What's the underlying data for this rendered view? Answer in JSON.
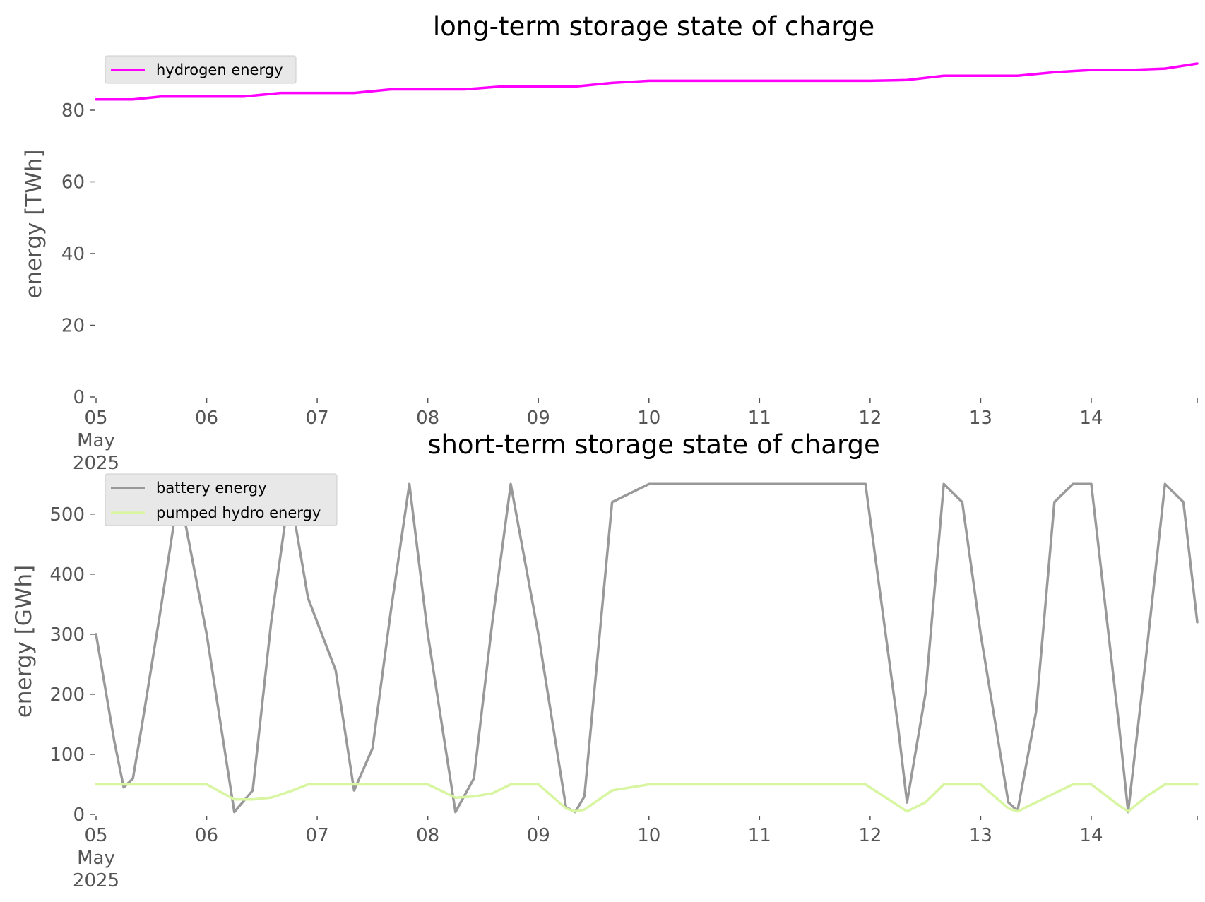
{
  "chart_data": [
    {
      "type": "line",
      "title": "long-term storage state of charge",
      "xlabel": "",
      "ylabel": "energy [TWh]",
      "ylim": [
        0,
        93
      ],
      "yticks": [
        0,
        20,
        40,
        60,
        80
      ],
      "xlim": [
        "2025-05-05 00:00",
        "2025-05-14 23:00"
      ],
      "xticks": [
        "05\nMay\n2025",
        "06",
        "07",
        "08",
        "09",
        "10",
        "11",
        "12",
        "13",
        "14"
      ],
      "grid": false,
      "legend": "upper left",
      "x": [
        "2025-05-05 00:00",
        "2025-05-05 08:00",
        "2025-05-05 14:00",
        "2025-05-05 20:00",
        "2025-05-06 08:00",
        "2025-05-06 16:00",
        "2025-05-06 22:00",
        "2025-05-07 08:00",
        "2025-05-07 16:00",
        "2025-05-07 23:00",
        "2025-05-08 08:00",
        "2025-05-08 16:00",
        "2025-05-09 00:00",
        "2025-05-09 08:00",
        "2025-05-09 16:00",
        "2025-05-10 00:00",
        "2025-05-10 08:00",
        "2025-05-10 16:00",
        "2025-05-11 00:00",
        "2025-05-11 08:00",
        "2025-05-11 16:00",
        "2025-05-12 00:00",
        "2025-05-12 08:00",
        "2025-05-12 16:00",
        "2025-05-13 00:00",
        "2025-05-13 08:00",
        "2025-05-13 16:00",
        "2025-05-14 00:00",
        "2025-05-14 08:00",
        "2025-05-14 16:00",
        "2025-05-14 23:00"
      ],
      "series": [
        {
          "name": "hydrogen energy",
          "color": "#ff00ff",
          "values": [
            83.0,
            83.0,
            83.8,
            83.8,
            83.8,
            84.8,
            84.8,
            84.8,
            85.8,
            85.8,
            85.8,
            86.6,
            86.6,
            86.6,
            87.6,
            88.2,
            88.2,
            88.2,
            88.2,
            88.2,
            88.2,
            88.2,
            88.4,
            89.6,
            89.6,
            89.6,
            90.6,
            91.2,
            91.2,
            91.6,
            93.0
          ]
        }
      ]
    },
    {
      "type": "line",
      "title": "short-term storage state of charge",
      "xlabel": "",
      "ylabel": "energy [GWh]",
      "ylim": [
        0,
        555
      ],
      "yticks": [
        0,
        100,
        200,
        300,
        400,
        500
      ],
      "xlim": [
        "2025-05-05 00:00",
        "2025-05-14 23:00"
      ],
      "xticks": [
        "05\nMay\n2025",
        "06",
        "07",
        "08",
        "09",
        "10",
        "11",
        "12",
        "13",
        "14"
      ],
      "grid": false,
      "legend": "upper left",
      "x": [
        "2025-05-05 00:00",
        "2025-05-05 04:00",
        "2025-05-05 06:00",
        "2025-05-05 08:00",
        "2025-05-05 10:00",
        "2025-05-05 14:00",
        "2025-05-05 18:00",
        "2025-05-06 00:00",
        "2025-05-06 06:00",
        "2025-05-06 10:00",
        "2025-05-06 14:00",
        "2025-05-06 18:00",
        "2025-05-06 22:00",
        "2025-05-07 04:00",
        "2025-05-07 08:00",
        "2025-05-07 12:00",
        "2025-05-07 16:00",
        "2025-05-07 20:00",
        "2025-05-08 00:00",
        "2025-05-08 06:00",
        "2025-05-08 10:00",
        "2025-05-08 14:00",
        "2025-05-08 18:00",
        "2025-05-09 00:00",
        "2025-05-09 06:00",
        "2025-05-09 08:00",
        "2025-05-09 10:00",
        "2025-05-09 16:00",
        "2025-05-10 00:00",
        "2025-05-11 00:00",
        "2025-05-11 23:00",
        "2025-05-12 06:00",
        "2025-05-12 08:00",
        "2025-05-12 12:00",
        "2025-05-12 16:00",
        "2025-05-12 20:00",
        "2025-05-13 00:00",
        "2025-05-13 06:00",
        "2025-05-13 08:00",
        "2025-05-13 12:00",
        "2025-05-13 16:00",
        "2025-05-13 20:00",
        "2025-05-14 00:00",
        "2025-05-14 06:00",
        "2025-05-14 08:00",
        "2025-05-14 12:00",
        "2025-05-14 16:00",
        "2025-05-14 20:00",
        "2025-05-14 23:00"
      ],
      "series": [
        {
          "name": "battery energy",
          "color": "#999999",
          "values": [
            300,
            120,
            45,
            60,
            150,
            340,
            540,
            300,
            4,
            40,
            320,
            540,
            360,
            240,
            40,
            110,
            340,
            550,
            300,
            4,
            60,
            320,
            550,
            300,
            12,
            4,
            30,
            520,
            550,
            550,
            550,
            150,
            20,
            200,
            550,
            520,
            300,
            20,
            6,
            170,
            520,
            550,
            550,
            150,
            4,
            270,
            550,
            520,
            320
          ]
        },
        {
          "name": "pumped hydro energy",
          "color": "#d8f5a2",
          "values": [
            50,
            50,
            50,
            50,
            50,
            50,
            50,
            50,
            25,
            25,
            28,
            38,
            50,
            50,
            50,
            50,
            50,
            50,
            50,
            28,
            30,
            35,
            50,
            50,
            10,
            5,
            8,
            40,
            50,
            50,
            50,
            15,
            5,
            20,
            50,
            50,
            50,
            10,
            5,
            20,
            35,
            50,
            50,
            15,
            5,
            30,
            50,
            50,
            50
          ]
        }
      ]
    }
  ]
}
